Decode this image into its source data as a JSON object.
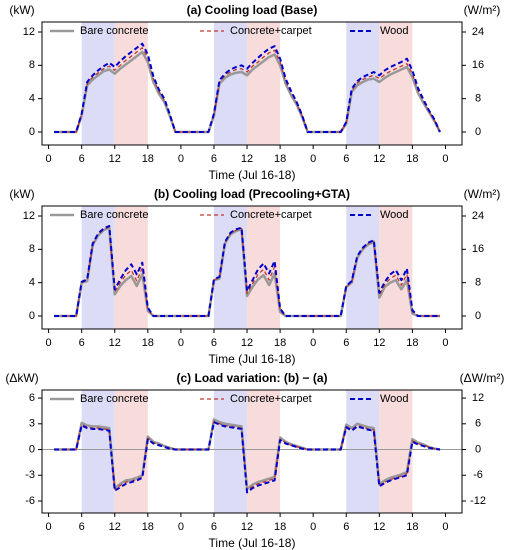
{
  "chart_data": [
    {
      "type": "line",
      "title": "(a) Cooling load (Base)",
      "y_label": "(kW)",
      "y2_label": "(W/m²)",
      "x_label": "Time (Jul 16-18)",
      "x": [
        1,
        5,
        6,
        7,
        8,
        9,
        10,
        11,
        12,
        13,
        14,
        15,
        16,
        17,
        18,
        19,
        20,
        21,
        22,
        23,
        25,
        29,
        30,
        31,
        32,
        33,
        34,
        35,
        36,
        37,
        38,
        39,
        40,
        41,
        42,
        43,
        44,
        45,
        46,
        47,
        49,
        53,
        54,
        55,
        56,
        57,
        58,
        59,
        60,
        61,
        62,
        63,
        64,
        65,
        66,
        67,
        68,
        69,
        70,
        71
      ],
      "xlim": [
        -1.2,
        75
      ],
      "xticks": [
        0,
        6,
        12,
        18,
        {
          "value": 24,
          "label": "0"
        },
        {
          "value": 30,
          "label": "6"
        },
        {
          "value": 36,
          "label": "12"
        },
        {
          "value": 42,
          "label": "18"
        },
        {
          "value": 48,
          "label": "0"
        },
        {
          "value": 54,
          "label": "6"
        },
        {
          "value": 60,
          "label": "12"
        },
        {
          "value": 66,
          "label": "18"
        },
        {
          "value": 72,
          "label": "0"
        }
      ],
      "ylim": [
        -1.56,
        13.2
      ],
      "yticks": [
        0,
        4,
        8,
        12
      ],
      "y2lim": [
        -3.12,
        26.4
      ],
      "y2ticks": [
        0,
        8,
        16,
        24
      ],
      "shaded_spans": [
        {
          "start": 6,
          "end": 12,
          "color": "#dcdcf6"
        },
        {
          "start": 12,
          "end": 18,
          "color": "#f8dcdc"
        },
        {
          "start": 30,
          "end": 36,
          "color": "#dcdcf6"
        },
        {
          "start": 36,
          "end": 42,
          "color": "#f8dcdc"
        },
        {
          "start": 54,
          "end": 60,
          "color": "#dcdcf6"
        },
        {
          "start": 60,
          "end": 66,
          "color": "#f8dcdc"
        }
      ],
      "series": [
        {
          "name": "Bare concrete",
          "color": "#999999",
          "style": "solid",
          "values": [
            0,
            0,
            2,
            5.6,
            6.3,
            6.8,
            7.3,
            7.5,
            7,
            7.6,
            8.1,
            8.6,
            9.1,
            9.6,
            8.4,
            6,
            4.6,
            3.6,
            1.9,
            0,
            0,
            0,
            2,
            5.8,
            6.5,
            6.9,
            7.1,
            7.2,
            6.8,
            7.5,
            8,
            8.5,
            9,
            9.3,
            8,
            5.8,
            4.4,
            3.3,
            1.8,
            0,
            0,
            0,
            1,
            4.8,
            5.6,
            6,
            6.3,
            6.4,
            6,
            6.5,
            6.9,
            7.2,
            7.5,
            7.8,
            6.6,
            4.7,
            3.5,
            2.4,
            1.3,
            0
          ]
        },
        {
          "name": "Concrete+carpet",
          "color": "#c0392b",
          "style": "dashed",
          "values": [
            0,
            0,
            2.1,
            5.8,
            6.6,
            7.1,
            7.6,
            7.9,
            7.4,
            8,
            8.6,
            9.1,
            9.6,
            10.1,
            8.9,
            6.4,
            4.9,
            3.8,
            2,
            0,
            0,
            0,
            2.1,
            6,
            6.8,
            7.2,
            7.5,
            7.6,
            7.2,
            7.9,
            8.4,
            9,
            9.5,
            9.8,
            8.4,
            6.1,
            4.7,
            3.5,
            1.9,
            0,
            0,
            0,
            1.1,
            5,
            5.9,
            6.3,
            6.6,
            6.8,
            6.4,
            6.9,
            7.3,
            7.6,
            7.9,
            8.2,
            7,
            5,
            3.7,
            2.5,
            1.4,
            0
          ]
        },
        {
          "name": "Wood",
          "color": "#0000cc",
          "style": "dashed",
          "values": [
            0,
            0,
            2.2,
            6,
            6.8,
            7.4,
            7.9,
            8.3,
            7.8,
            8.5,
            9.1,
            9.6,
            10.1,
            10.6,
            9.3,
            6.7,
            5.1,
            4,
            2.1,
            0,
            0,
            0,
            2.2,
            6.2,
            7,
            7.5,
            7.8,
            8,
            7.6,
            8.3,
            8.9,
            9.5,
            10,
            10.3,
            8.8,
            6.4,
            4.9,
            3.6,
            2,
            0,
            0,
            0,
            1.2,
            5.2,
            6.1,
            6.6,
            6.9,
            7.2,
            6.8,
            7.4,
            7.8,
            8.1,
            8.4,
            8.8,
            7.4,
            5.3,
            3.9,
            2.6,
            1.5,
            0
          ]
        }
      ]
    },
    {
      "type": "line",
      "title": "(b) Cooling load (Precooling+GTA)",
      "y_label": "(kW)",
      "y2_label": "(W/m²)",
      "x_label": "Time (Jul 16-18)",
      "x": [
        1,
        5,
        6,
        7,
        8,
        9,
        10,
        11,
        12,
        13,
        14,
        15,
        16,
        17,
        18,
        19,
        20,
        21,
        22,
        23,
        25,
        29,
        30,
        31,
        32,
        33,
        34,
        35,
        36,
        37,
        38,
        39,
        40,
        41,
        42,
        43,
        44,
        45,
        46,
        47,
        49,
        53,
        54,
        55,
        56,
        57,
        58,
        59,
        60,
        61,
        62,
        63,
        64,
        65,
        66,
        67,
        68,
        69,
        70,
        71
      ],
      "xlim": [
        -1.2,
        75
      ],
      "xticks": [
        0,
        6,
        12,
        18,
        {
          "value": 24,
          "label": "0"
        },
        {
          "value": 30,
          "label": "6"
        },
        {
          "value": 36,
          "label": "12"
        },
        {
          "value": 42,
          "label": "18"
        },
        {
          "value": 48,
          "label": "0"
        },
        {
          "value": 54,
          "label": "6"
        },
        {
          "value": 60,
          "label": "12"
        },
        {
          "value": 66,
          "label": "18"
        },
        {
          "value": 72,
          "label": "0"
        }
      ],
      "ylim": [
        -1.56,
        13.2
      ],
      "yticks": [
        0,
        4,
        8,
        12
      ],
      "y2lim": [
        -3.12,
        26.4
      ],
      "y2ticks": [
        0,
        8,
        16,
        24
      ],
      "shaded_spans": [
        {
          "start": 6,
          "end": 12,
          "color": "#dcdcf6"
        },
        {
          "start": 12,
          "end": 18,
          "color": "#f8dcdc"
        },
        {
          "start": 30,
          "end": 36,
          "color": "#dcdcf6"
        },
        {
          "start": 36,
          "end": 42,
          "color": "#f8dcdc"
        },
        {
          "start": 54,
          "end": 60,
          "color": "#dcdcf6"
        },
        {
          "start": 60,
          "end": 66,
          "color": "#f8dcdc"
        }
      ],
      "series": [
        {
          "name": "Bare concrete",
          "color": "#999999",
          "style": "solid",
          "values": [
            0,
            0,
            4,
            4.2,
            8.5,
            9.7,
            10.3,
            10.6,
            2.6,
            3.6,
            4.3,
            4.8,
            3.6,
            5,
            0.6,
            0,
            0,
            0,
            0,
            0,
            0,
            0,
            4.3,
            4.5,
            8.7,
            9.8,
            10.2,
            10.4,
            2.4,
            3.5,
            4.4,
            4.9,
            3.7,
            5.1,
            0.5,
            0,
            0,
            0,
            0,
            0,
            0,
            0,
            3.5,
            4,
            7,
            8,
            8.6,
            8.9,
            2.2,
            3.5,
            4,
            4.3,
            3.2,
            4.3,
            0.3,
            0,
            0,
            0,
            0,
            0
          ]
        },
        {
          "name": "Concrete+carpet",
          "color": "#c0392b",
          "style": "dashed",
          "values": [
            0,
            0,
            4,
            4.3,
            8.6,
            9.8,
            10.4,
            10.7,
            2.9,
            4,
            4.9,
            5.5,
            4.2,
            5.8,
            0.8,
            0,
            0,
            0,
            0,
            0,
            0,
            0,
            4.3,
            4.6,
            8.8,
            9.9,
            10.3,
            10.5,
            2.7,
            3.9,
            5,
            5.6,
            4.3,
            5.9,
            0.7,
            0,
            0,
            0,
            0,
            0,
            0,
            0,
            3.5,
            4.1,
            7.1,
            8.1,
            8.7,
            9,
            2.5,
            3.8,
            4.5,
            4.9,
            3.7,
            5,
            0.5,
            0,
            0,
            0,
            0,
            0
          ]
        },
        {
          "name": "Wood",
          "color": "#0000cc",
          "style": "dashed",
          "values": [
            0,
            0,
            4.1,
            4.4,
            8.7,
            9.9,
            10.5,
            10.8,
            3.2,
            4.4,
            5.5,
            6.2,
            5,
            6.4,
            1,
            0,
            0,
            0,
            0,
            0,
            0,
            0,
            4.4,
            4.7,
            8.9,
            10,
            10.4,
            10.6,
            3,
            4.3,
            5.6,
            6.3,
            5.1,
            6.6,
            0.9,
            0,
            0,
            0,
            0,
            0,
            0,
            0,
            3.6,
            4.2,
            7.2,
            8.2,
            8.8,
            9.1,
            2.8,
            4.1,
            5,
            5.5,
            4.3,
            5.7,
            0.7,
            0,
            0,
            0,
            0,
            0
          ]
        }
      ]
    },
    {
      "type": "line",
      "title": "(c) Load variation: (b) − (a)",
      "y_label": "(ΔkW)",
      "y2_label": "(ΔW/m²)",
      "x_label": "Time (Jul 16-18)",
      "zero_line": true,
      "x": [
        1,
        5,
        6,
        7,
        8,
        9,
        10,
        11,
        12,
        13,
        14,
        15,
        16,
        17,
        18,
        19,
        20,
        21,
        22,
        23,
        25,
        29,
        30,
        31,
        32,
        33,
        34,
        35,
        36,
        37,
        38,
        39,
        40,
        41,
        42,
        43,
        44,
        45,
        46,
        47,
        49,
        53,
        54,
        55,
        56,
        57,
        58,
        59,
        60,
        61,
        62,
        63,
        64,
        65,
        66,
        67,
        68,
        69,
        70,
        71
      ],
      "xlim": [
        -1.2,
        75
      ],
      "xticks": [
        0,
        6,
        12,
        18,
        {
          "value": 24,
          "label": "0"
        },
        {
          "value": 30,
          "label": "6"
        },
        {
          "value": 36,
          "label": "12"
        },
        {
          "value": 42,
          "label": "18"
        },
        {
          "value": 48,
          "label": "0"
        },
        {
          "value": 54,
          "label": "6"
        },
        {
          "value": 60,
          "label": "12"
        },
        {
          "value": 66,
          "label": "18"
        },
        {
          "value": 72,
          "label": "0"
        }
      ],
      "ylim": [
        -7.4,
        6.94
      ],
      "yticks": [
        -6,
        -3,
        0,
        3,
        6
      ],
      "y2lim": [
        -14.8,
        13.88
      ],
      "y2ticks": [
        -12,
        -6,
        0,
        6,
        12
      ],
      "shaded_spans": [
        {
          "start": 6,
          "end": 12,
          "color": "#dcdcf6"
        },
        {
          "start": 12,
          "end": 18,
          "color": "#f8dcdc"
        },
        {
          "start": 30,
          "end": 36,
          "color": "#dcdcf6"
        },
        {
          "start": 36,
          "end": 42,
          "color": "#f8dcdc"
        },
        {
          "start": 54,
          "end": 60,
          "color": "#dcdcf6"
        },
        {
          "start": 60,
          "end": 66,
          "color": "#f8dcdc"
        }
      ],
      "series": [
        {
          "name": "Bare concrete",
          "color": "#999999",
          "style": "solid",
          "values": [
            0,
            0,
            3.1,
            2.8,
            2.7,
            2.7,
            2.6,
            2.5,
            -4.5,
            -4,
            -3.6,
            -3.5,
            -3.3,
            -3,
            1.5,
            0.9,
            0.7,
            0.4,
            0.2,
            0,
            0,
            0,
            3.5,
            3.2,
            3,
            2.9,
            2.8,
            2.7,
            -4.6,
            -4.1,
            -3.8,
            -3.6,
            -3.4,
            -3.2,
            1.4,
            0.9,
            0.6,
            0.4,
            0.2,
            0,
            0,
            0,
            2.9,
            2.5,
            3,
            2.8,
            2.6,
            2.5,
            -4,
            -3.6,
            -3.3,
            -3.1,
            -2.9,
            -2.6,
            1.2,
            0.8,
            0.6,
            0.3,
            0.1,
            0
          ]
        },
        {
          "name": "Concrete+carpet",
          "color": "#c0392b",
          "style": "dashed",
          "values": [
            0,
            0,
            2.9,
            2.6,
            2.5,
            2.5,
            2.4,
            2.3,
            -4.6,
            -4.2,
            -3.8,
            -3.7,
            -3.5,
            -3.2,
            1.3,
            0.8,
            0.6,
            0.3,
            0.2,
            0,
            0,
            0,
            3.3,
            3,
            2.8,
            2.7,
            2.6,
            2.5,
            -4.8,
            -4.3,
            -4,
            -3.8,
            -3.6,
            -3.4,
            1.2,
            0.8,
            0.5,
            0.3,
            0.2,
            0,
            0,
            0,
            2.7,
            2.3,
            2.8,
            2.6,
            2.4,
            2.3,
            -4.1,
            -3.8,
            -3.5,
            -3.3,
            -3.1,
            -2.8,
            1,
            0.7,
            0.5,
            0.3,
            0.1,
            0
          ]
        },
        {
          "name": "Wood",
          "color": "#0000cc",
          "style": "dashed",
          "values": [
            0,
            0,
            2.8,
            2.5,
            2.4,
            2.4,
            2.3,
            2.2,
            -4.8,
            -4.4,
            -4,
            -3.8,
            -3.6,
            -3.3,
            1.2,
            0.7,
            0.5,
            0.3,
            0.1,
            0,
            0,
            0,
            3.2,
            2.9,
            2.7,
            2.6,
            2.5,
            2.4,
            -5,
            -4.5,
            -4.2,
            -4,
            -3.8,
            -3.6,
            1.1,
            0.7,
            0.5,
            0.3,
            0.1,
            0,
            0,
            0,
            2.6,
            2.2,
            2.7,
            2.5,
            2.3,
            2.2,
            -4.3,
            -3.9,
            -3.6,
            -3.4,
            -3.2,
            -3,
            0.9,
            0.6,
            0.4,
            0.2,
            0.1,
            0
          ]
        }
      ]
    }
  ]
}
